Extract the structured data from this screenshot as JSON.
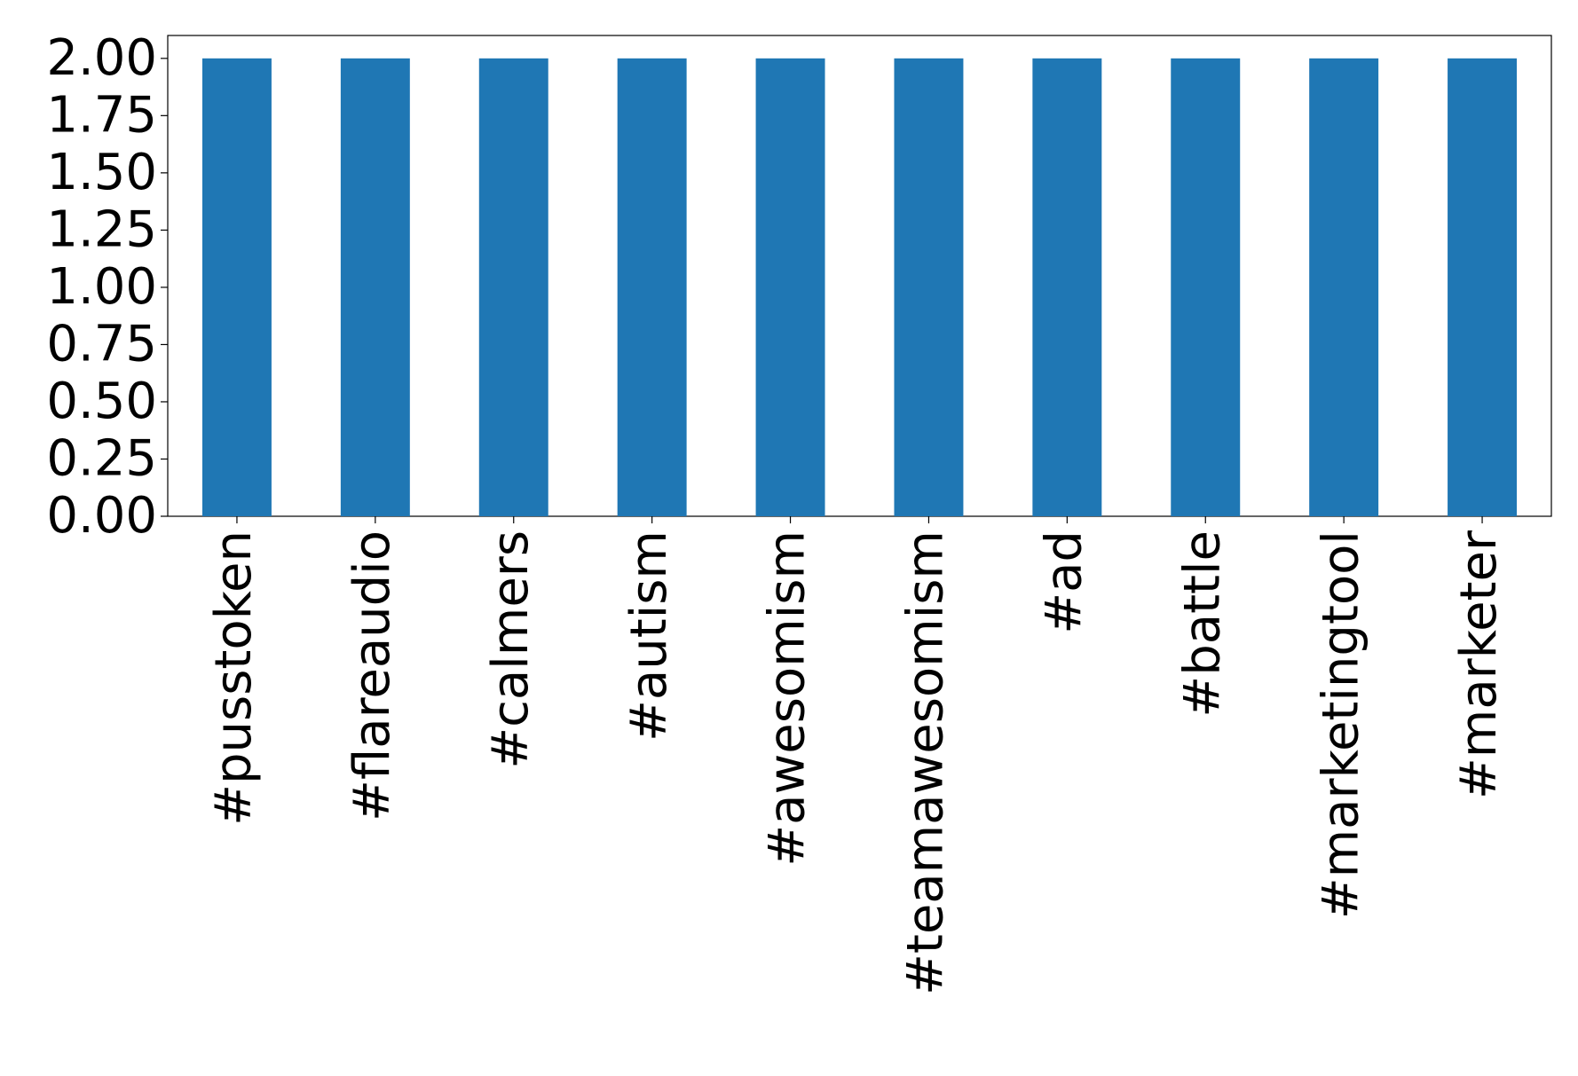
{
  "chart_data": {
    "type": "bar",
    "categories": [
      "#pusstoken",
      "#flareaudio",
      "#calmers",
      "#autism",
      "#awesomism",
      "#teamawesomism",
      "#ad",
      "#battle",
      "#marketingtool",
      "#marketer"
    ],
    "values": [
      2,
      2,
      2,
      2,
      2,
      2,
      2,
      2,
      2,
      2
    ],
    "color": "#1f77b4",
    "ylim": [
      0,
      2.1
    ],
    "yticks": [
      {
        "value": 0,
        "label": "0.00"
      },
      {
        "value": 0.25,
        "label": "0.25"
      },
      {
        "value": 0.5,
        "label": "0.50"
      },
      {
        "value": 0.75,
        "label": "0.75"
      },
      {
        "value": 1,
        "label": "1.00"
      },
      {
        "value": 1.25,
        "label": "1.25"
      },
      {
        "value": 1.5,
        "label": "1.50"
      },
      {
        "value": 1.75,
        "label": "1.75"
      },
      {
        "value": 2,
        "label": "2.00"
      }
    ],
    "grid": false
  }
}
